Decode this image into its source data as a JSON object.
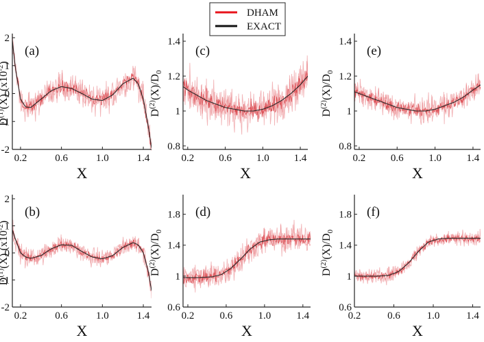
{
  "legend": {
    "items": [
      {
        "label": "DHAM",
        "color": "#e8121a"
      },
      {
        "label": "EXACT",
        "color": "#111111"
      }
    ]
  },
  "colors": {
    "noise": "#e8767c",
    "noise_dark": "#d2232b",
    "exact": "#2a2a2a"
  },
  "chart_data": [
    {
      "id": "a",
      "type": "line",
      "panel_label": "(a)",
      "xlabel": "X",
      "ylabel": "D(1)(X) (x10-2)",
      "ylabel_parts": {
        "pre": "D",
        "sup1": "(1)",
        "mid": "(X) (x10",
        "sup2": "-2",
        "post": ")"
      },
      "xlim": [
        0.12,
        1.48
      ],
      "ylim": [
        -2,
        2
      ],
      "xticks": [
        "0.2",
        "0.6",
        "1.0",
        "1.4"
      ],
      "yticks": [
        "-2",
        "-1",
        "0",
        "1",
        "2"
      ],
      "series": [
        {
          "name": "EXACT",
          "x": [
            0.12,
            0.15,
            0.2,
            0.25,
            0.3,
            0.4,
            0.5,
            0.6,
            0.7,
            0.8,
            0.9,
            1.0,
            1.1,
            1.2,
            1.3,
            1.35,
            1.4,
            1.45,
            1.48
          ],
          "y": [
            1.9,
            0.9,
            -0.2,
            -0.48,
            -0.5,
            -0.2,
            0.1,
            0.25,
            0.18,
            0.0,
            -0.2,
            -0.25,
            -0.05,
            0.35,
            0.55,
            0.35,
            -0.2,
            -1.2,
            -1.95
          ]
        },
        {
          "name": "DHAM",
          "noise": 0.35
        }
      ]
    },
    {
      "id": "b",
      "type": "line",
      "panel_label": "(b)",
      "xlabel": "X",
      "ylabel": "D(1)(X) (x10-2)",
      "ylabel_parts": {
        "pre": "D",
        "sup1": "(1)",
        "mid": "(X) (x10",
        "sup2": "-2",
        "post": ")"
      },
      "xlim": [
        0.12,
        1.48
      ],
      "ylim": [
        -2,
        2
      ],
      "xticks": [
        "0.2",
        "0.6",
        "1.0",
        "1.4"
      ],
      "yticks": [
        "-2",
        "-1",
        "0",
        "1",
        "2"
      ],
      "series": [
        {
          "name": "EXACT",
          "x": [
            0.12,
            0.15,
            0.2,
            0.25,
            0.3,
            0.4,
            0.5,
            0.6,
            0.7,
            0.8,
            0.9,
            1.0,
            1.1,
            1.2,
            1.3,
            1.35,
            1.4,
            1.45,
            1.48
          ],
          "y": [
            0.85,
            0.5,
            0.0,
            -0.15,
            -0.2,
            -0.1,
            0.15,
            0.3,
            0.28,
            0.05,
            -0.15,
            -0.22,
            -0.1,
            0.2,
            0.38,
            0.3,
            0.0,
            -0.7,
            -1.4
          ]
        },
        {
          "name": "DHAM",
          "noise": 0.25
        }
      ]
    },
    {
      "id": "c",
      "type": "line",
      "panel_label": "(c)",
      "xlabel": "X",
      "ylabel": "D(2)(X)/D0",
      "ylabel_parts": {
        "pre": "D",
        "sup1": "(2)",
        "mid": "(X)/D",
        "sub": "0"
      },
      "xlim": [
        0.15,
        1.48
      ],
      "ylim": [
        0.78,
        1.42
      ],
      "xticks": [
        "0.2",
        "0.6",
        "1.0",
        "1.4"
      ],
      "yticks": [
        "0.8",
        "1",
        "1.2",
        "1.4"
      ],
      "series": [
        {
          "name": "EXACT",
          "x": [
            0.15,
            0.2,
            0.3,
            0.4,
            0.5,
            0.6,
            0.7,
            0.8,
            0.9,
            1.0,
            1.1,
            1.2,
            1.3,
            1.4,
            1.48
          ],
          "y": [
            1.14,
            1.12,
            1.09,
            1.06,
            1.04,
            1.02,
            1.01,
            1.0,
            1.0,
            1.01,
            1.03,
            1.06,
            1.1,
            1.15,
            1.2
          ]
        },
        {
          "name": "DHAM",
          "noise": 0.08
        }
      ]
    },
    {
      "id": "d",
      "type": "line",
      "panel_label": "(d)",
      "xlabel": "X",
      "ylabel": "D(2)(X)/D0",
      "ylabel_parts": {
        "pre": "D",
        "sup1": "(2)",
        "mid": "(X)/D",
        "sub": "0"
      },
      "xlim": [
        0.15,
        1.48
      ],
      "ylim": [
        0.6,
        2.0
      ],
      "xticks": [
        "0.2",
        "0.6",
        "1.0",
        "1.4"
      ],
      "yticks": [
        "0.6",
        "1",
        "1.4",
        "1.8"
      ],
      "series": [
        {
          "name": "EXACT",
          "x": [
            0.15,
            0.3,
            0.45,
            0.55,
            0.65,
            0.75,
            0.85,
            0.95,
            1.05,
            1.15,
            1.3,
            1.48
          ],
          "y": [
            0.98,
            0.98,
            0.99,
            1.02,
            1.1,
            1.22,
            1.35,
            1.44,
            1.47,
            1.48,
            1.48,
            1.48
          ]
        },
        {
          "name": "DHAM",
          "noise": 0.13
        }
      ]
    },
    {
      "id": "e",
      "type": "line",
      "panel_label": "(e)",
      "xlabel": "X",
      "ylabel": "D(2)(X)/D0",
      "ylabel_parts": {
        "pre": "D",
        "sup1": "(2)",
        "mid": "(X)/D",
        "sub": "0"
      },
      "xlim": [
        0.15,
        1.48
      ],
      "ylim": [
        0.78,
        1.42
      ],
      "xticks": [
        "0.2",
        "0.6",
        "1.0",
        "1.4"
      ],
      "yticks": [
        "0.8",
        "1",
        "1.2",
        "1.4"
      ],
      "series": [
        {
          "name": "EXACT",
          "x": [
            0.15,
            0.2,
            0.3,
            0.4,
            0.5,
            0.6,
            0.7,
            0.8,
            0.9,
            1.0,
            1.1,
            1.2,
            1.3,
            1.4,
            1.48
          ],
          "y": [
            1.11,
            1.1,
            1.08,
            1.06,
            1.04,
            1.02,
            1.01,
            1.0,
            1.0,
            1.01,
            1.03,
            1.05,
            1.08,
            1.12,
            1.15
          ]
        },
        {
          "name": "DHAM",
          "noise": 0.05
        }
      ]
    },
    {
      "id": "f",
      "type": "line",
      "panel_label": "(f)",
      "xlabel": "X",
      "ylabel": "D(2)(X)/D0",
      "ylabel_parts": {
        "pre": "D",
        "sup1": "(2)",
        "mid": "(X)/D",
        "sub": "0"
      },
      "xlim": [
        0.2,
        1.48
      ],
      "ylim": [
        0.6,
        2.0
      ],
      "xticks": [
        "0.2",
        "0.6",
        "1.0",
        "1.4"
      ],
      "yticks": [
        "0.6",
        "1",
        "1.4",
        "1.8"
      ],
      "series": [
        {
          "name": "EXACT",
          "x": [
            0.2,
            0.3,
            0.45,
            0.55,
            0.65,
            0.75,
            0.85,
            0.95,
            1.05,
            1.15,
            1.3,
            1.48
          ],
          "y": [
            1.0,
            1.0,
            1.0,
            1.01,
            1.06,
            1.17,
            1.32,
            1.44,
            1.48,
            1.49,
            1.49,
            1.49
          ]
        },
        {
          "name": "DHAM",
          "noise": 0.07
        }
      ]
    }
  ]
}
